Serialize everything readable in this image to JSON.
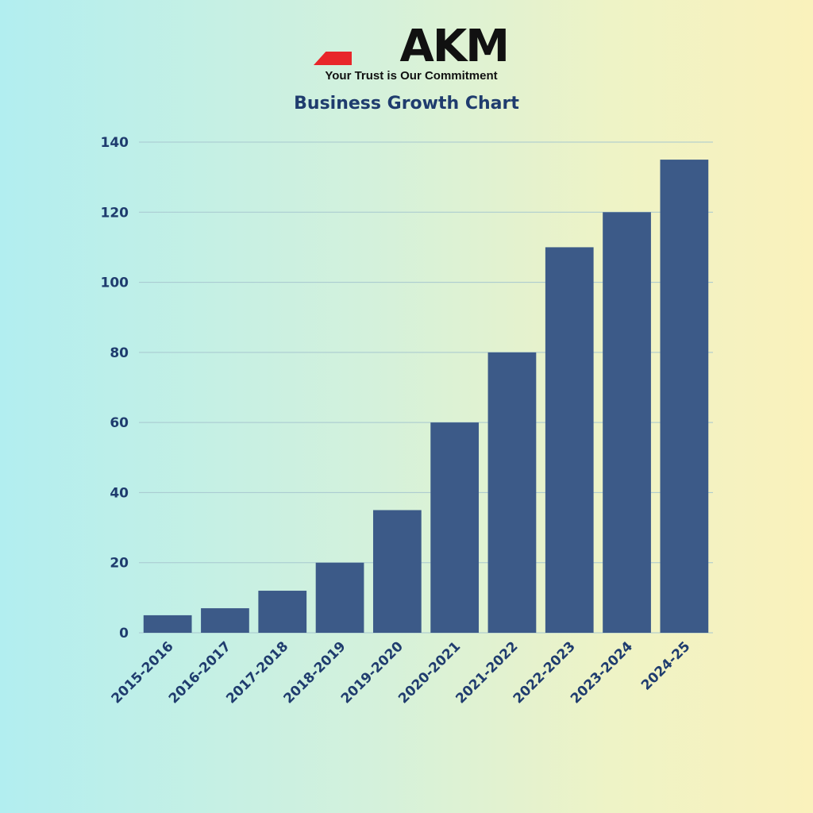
{
  "brand": {
    "logo_text": "AKM",
    "tagline": "Your Trust is Our Commitment",
    "colors": {
      "logo": "#111111",
      "accent": "#e8262a"
    }
  },
  "chart_data": {
    "type": "bar",
    "title": "Business Growth Chart",
    "xlabel": "",
    "ylabel": "",
    "categories": [
      "2015-2016",
      "2016-2017",
      "2017-2018",
      "2018-2019",
      "2019-2020",
      "2020-2021",
      "2021-2022",
      "2022-2023",
      "2023-2024",
      "2024-25"
    ],
    "values": [
      5,
      7,
      12,
      20,
      35,
      60,
      80,
      110,
      120,
      135
    ],
    "ylim": [
      0,
      140
    ],
    "yticks": [
      0,
      20,
      40,
      60,
      80,
      100,
      120,
      140
    ],
    "grid": true,
    "legend": "none",
    "colors": {
      "bar": "#3c5a88",
      "text": "#1f3c6e",
      "grid": "#a7c7cf"
    }
  }
}
